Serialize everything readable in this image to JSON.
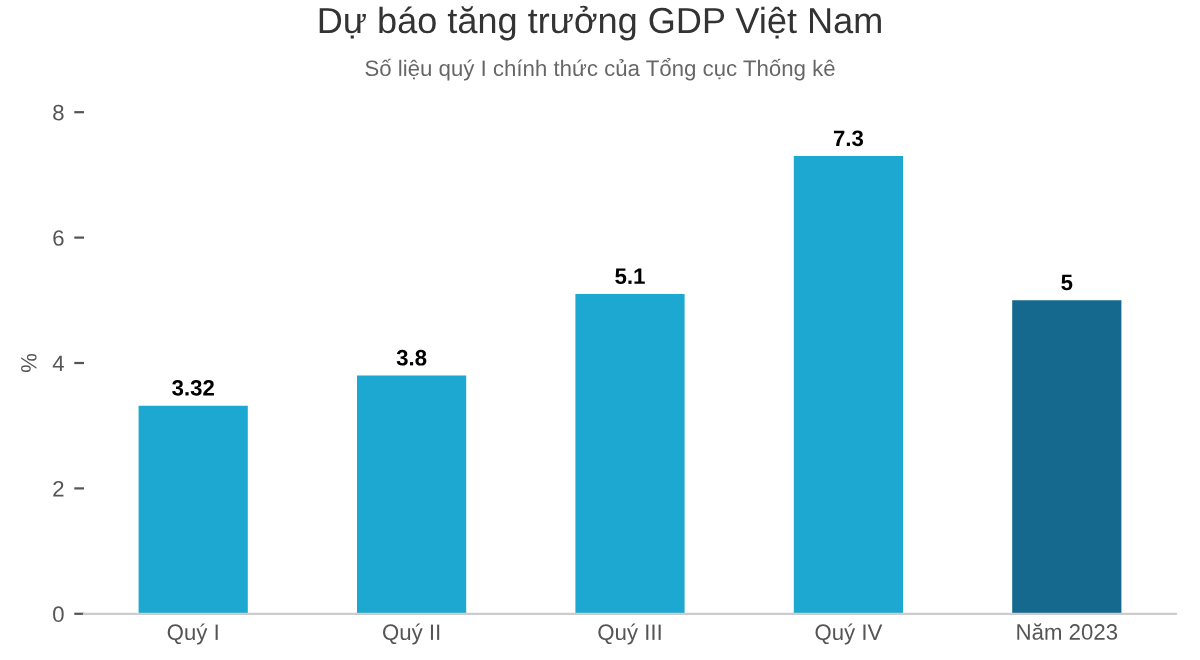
{
  "chart_data": {
    "type": "bar",
    "title": "Dự báo tăng trưởng GDP Việt Nam",
    "subtitle": "Số liệu quý I chính thức của Tổng cục Thống kê",
    "ylabel": "%",
    "categories": [
      "Quý I",
      "Quý II",
      "Quý III",
      "Quý IV",
      "Năm 2023"
    ],
    "values": [
      3.32,
      3.8,
      5.1,
      7.3,
      5
    ],
    "colors": [
      "#1ca8d1",
      "#1ca8d1",
      "#1ca8d1",
      "#1ca8d1",
      "#15698f"
    ],
    "value_labels": [
      "3.32",
      "3.8",
      "5.1",
      "7.3",
      "5"
    ],
    "ylim": [
      0,
      8
    ],
    "yticks": [
      0,
      2,
      4,
      6,
      8
    ],
    "grid": false,
    "legend": false
  }
}
